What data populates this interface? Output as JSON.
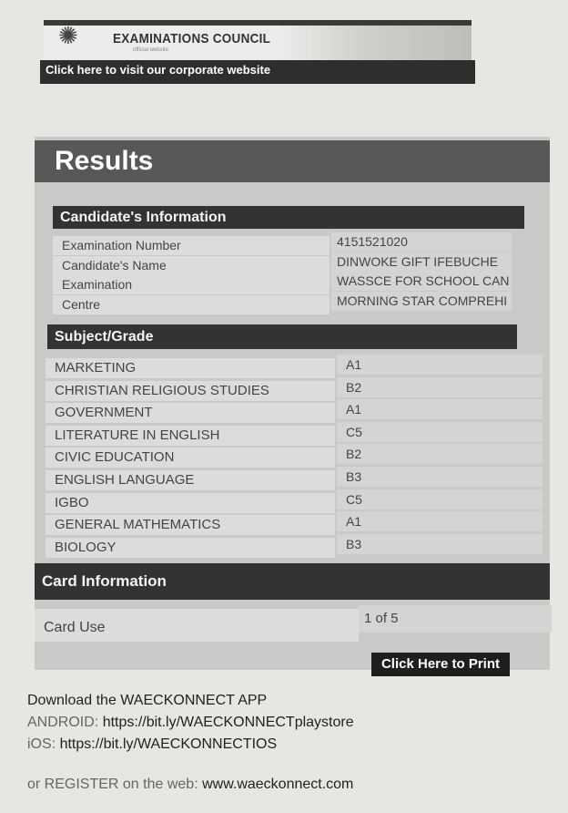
{
  "header": {
    "organization": "EXAMINATIONS COUNCIL",
    "tagline": "official website",
    "corporate_link": "Click here to visit our corporate website",
    "logo_icon": "waec-emblem-icon"
  },
  "results": {
    "title": "Results",
    "candidate_section": "Candidate's Information",
    "candidate": [
      {
        "label": "Examination Number",
        "value": "4151521020"
      },
      {
        "label": "Candidate's Name",
        "value": "DINWOKE GIFT IFEBUCHE"
      },
      {
        "label": "Examination",
        "value": "WASSCE FOR SCHOOL CAN"
      },
      {
        "label": "Centre",
        "value": "MORNING STAR COMPREHI"
      }
    ],
    "subject_section": "Subject/Grade",
    "subjects": [
      {
        "subject": "MARKETING",
        "grade": "A1"
      },
      {
        "subject": "CHRISTIAN RELIGIOUS STUDIES",
        "grade": "B2"
      },
      {
        "subject": "GOVERNMENT",
        "grade": "A1"
      },
      {
        "subject": "LITERATURE IN ENGLISH",
        "grade": "C5"
      },
      {
        "subject": "CIVIC EDUCATION",
        "grade": "B2"
      },
      {
        "subject": "ENGLISH LANGUAGE",
        "grade": "B3"
      },
      {
        "subject": "IGBO",
        "grade": "C5"
      },
      {
        "subject": "GENERAL MATHEMATICS",
        "grade": "A1"
      },
      {
        "subject": "BIOLOGY",
        "grade": "B3"
      }
    ],
    "card_section": "Card Information",
    "card": {
      "label": "Card Use",
      "value": "1 of 5"
    },
    "print_label": "Click Here to Print"
  },
  "footer": {
    "download": "Download the WAECKONNECT APP",
    "android_label": "ANDROID:",
    "android_url": "https://bit.ly/WAECKONNECTplaystore",
    "ios_label": "iOS:",
    "ios_url": "https://bit.ly/WAECKONNECTIOS",
    "register_label": "or REGISTER on the web:",
    "register_url": "www.waeckonnect.com"
  }
}
